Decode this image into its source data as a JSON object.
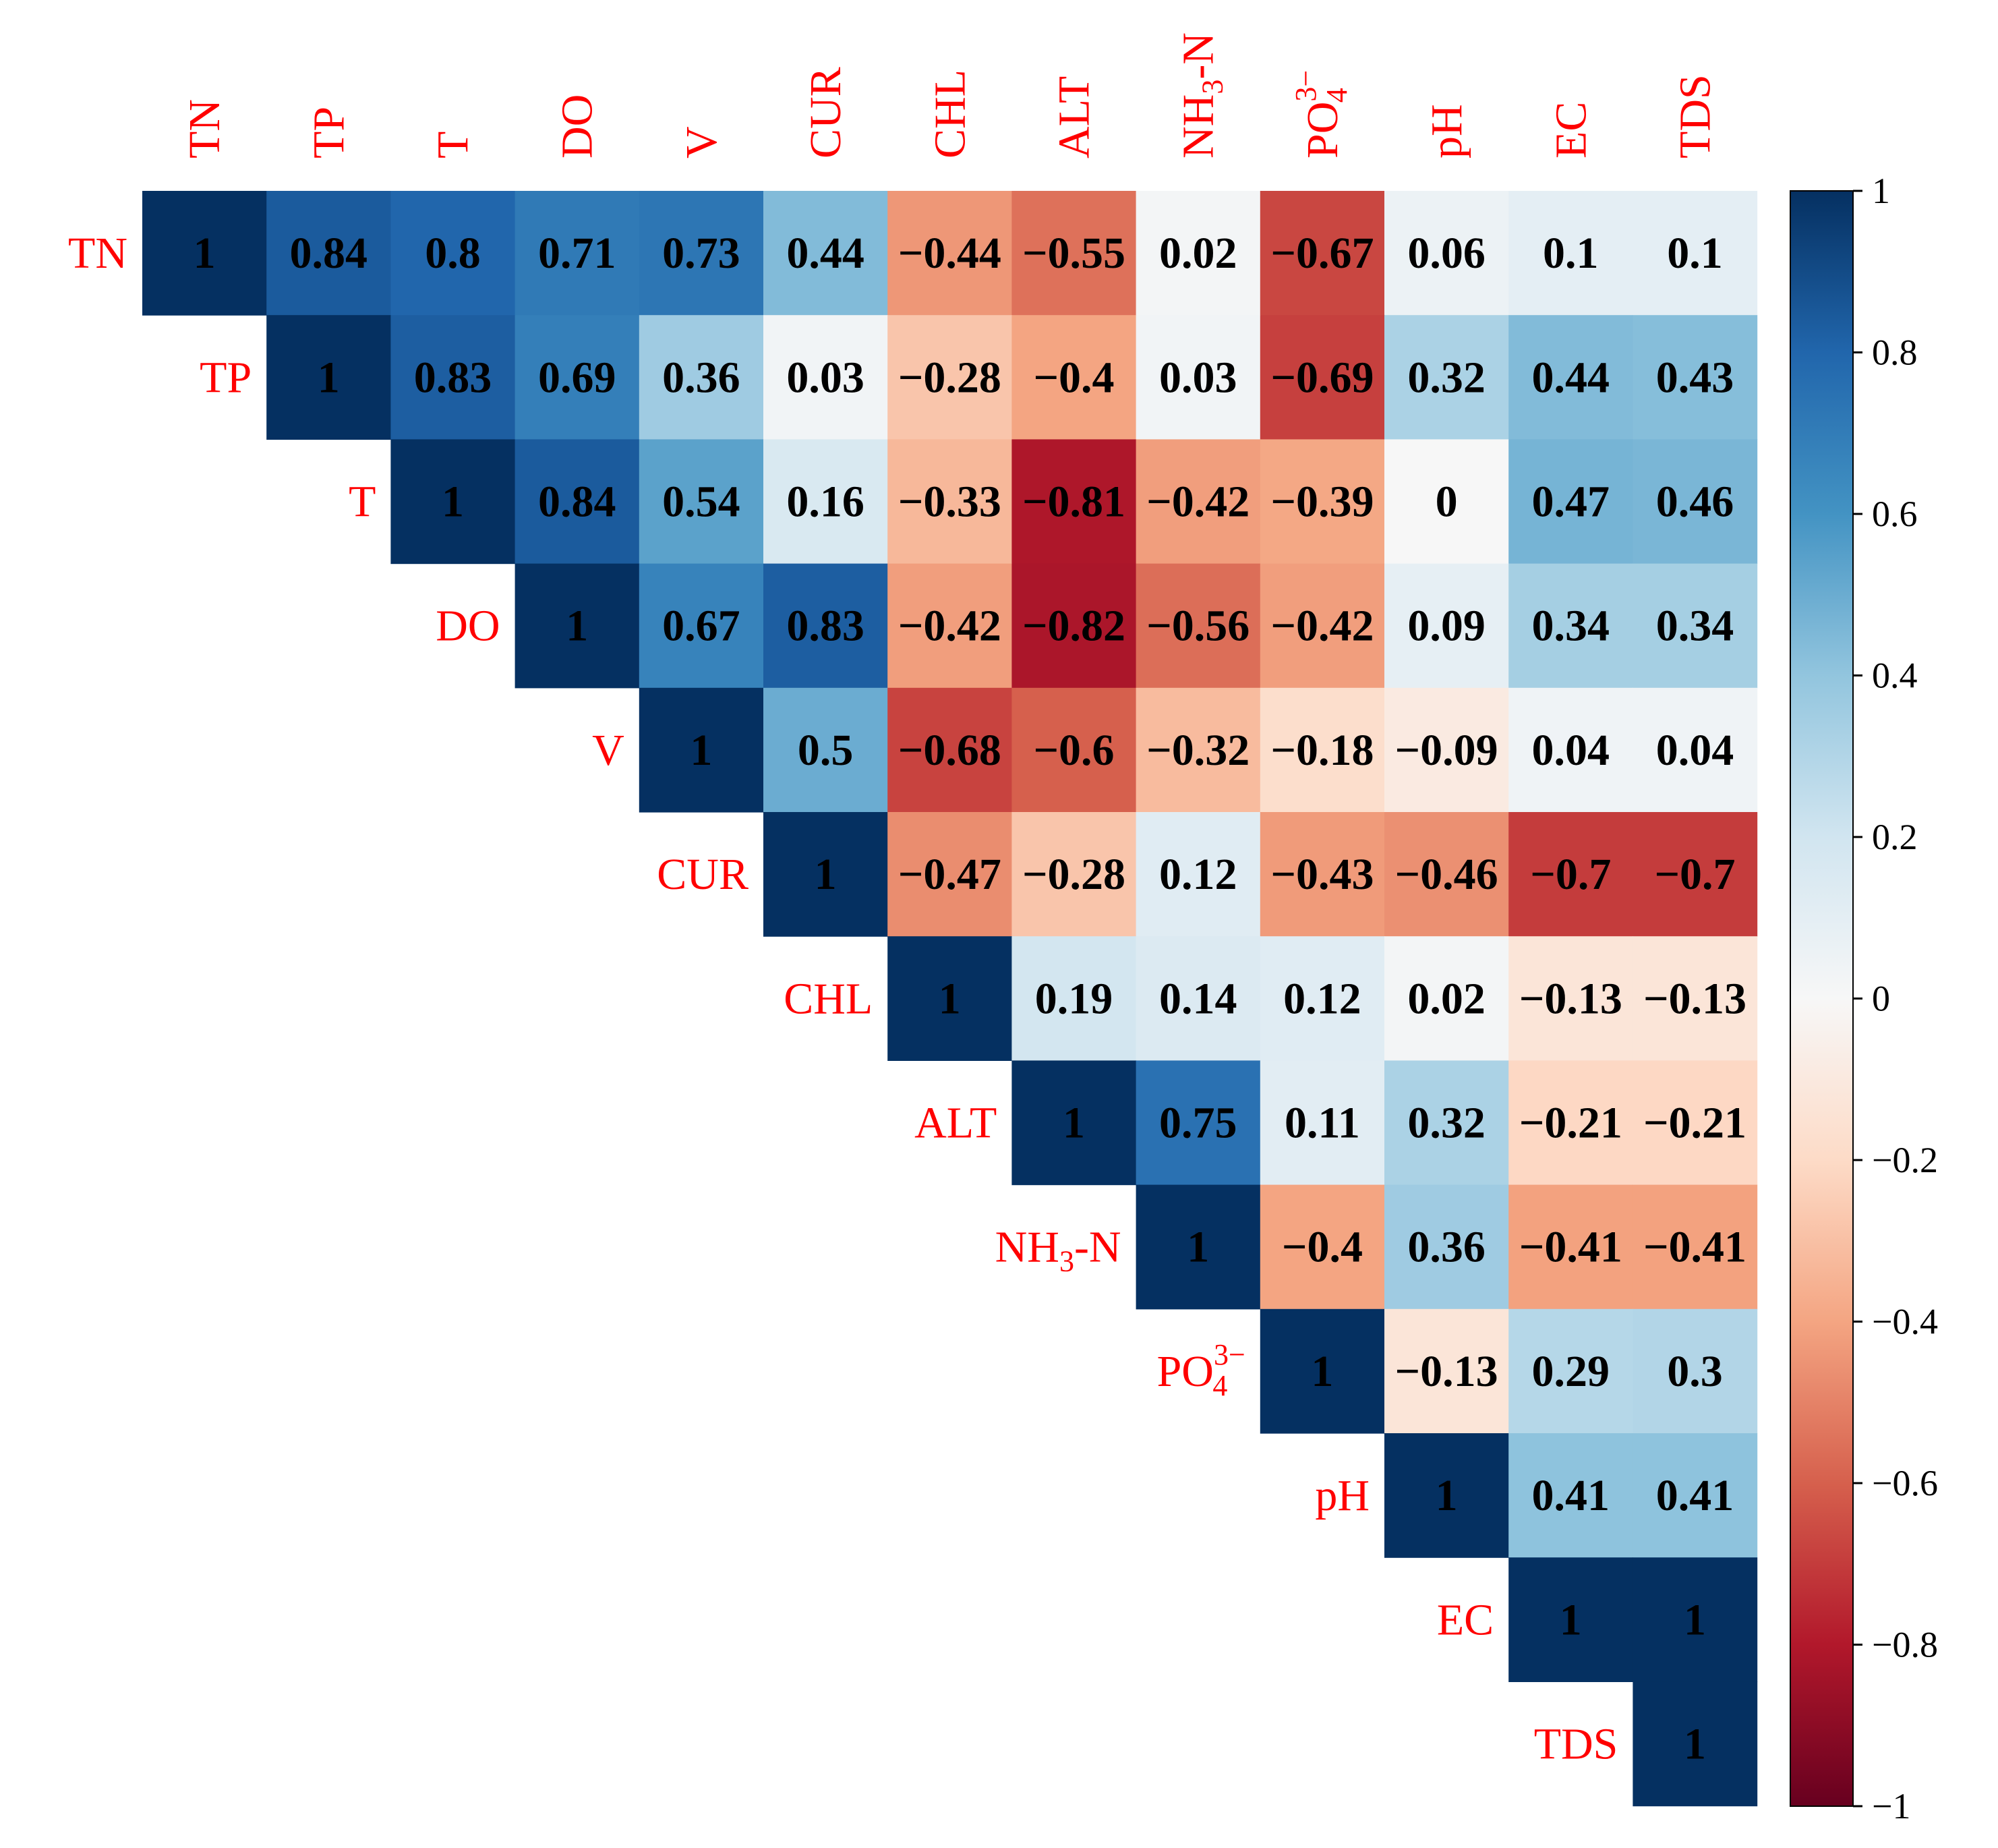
{
  "chart_data": {
    "type": "heatmap",
    "title": "",
    "variables": [
      {
        "main": "TN"
      },
      {
        "main": "TP"
      },
      {
        "main": "T"
      },
      {
        "main": "DO"
      },
      {
        "main": "V"
      },
      {
        "main": "CUR"
      },
      {
        "main": "CHL"
      },
      {
        "main": "ALT"
      },
      {
        "main": "NH",
        "sub": "3",
        "tail": "-N"
      },
      {
        "main": "PO",
        "sup": "3−",
        "sub": "4"
      },
      {
        "main": "pH"
      },
      {
        "main": "EC"
      },
      {
        "main": "TDS"
      }
    ],
    "matrix_upper": [
      [
        "1",
        "0.84",
        "0.8",
        "0.71",
        "0.73",
        "0.44",
        "−0.44",
        "−0.55",
        "0.02",
        "−0.67",
        "0.06",
        "0.1",
        "0.1"
      ],
      [
        "1",
        "0.83",
        "0.69",
        "0.36",
        "0.03",
        "−0.28",
        "−0.4",
        "0.03",
        "−0.69",
        "0.32",
        "0.44",
        "0.43"
      ],
      [
        "1",
        "0.84",
        "0.54",
        "0.16",
        "−0.33",
        "−0.81",
        "−0.42",
        "−0.39",
        "0",
        "0.47",
        "0.46"
      ],
      [
        "1",
        "0.67",
        "0.83",
        "−0.42",
        "−0.82",
        "−0.56",
        "−0.42",
        "0.09",
        "0.34",
        "0.34"
      ],
      [
        "1",
        "0.5",
        "−0.68",
        "−0.6",
        "−0.32",
        "−0.18",
        "−0.09",
        "0.04",
        "0.04"
      ],
      [
        "1",
        "−0.47",
        "−0.28",
        "0.12",
        "−0.43",
        "−0.46",
        "−0.7",
        "−0.7"
      ],
      [
        "1",
        "0.19",
        "0.14",
        "0.12",
        "0.02",
        "−0.13",
        "−0.13"
      ],
      [
        "1",
        "0.75",
        "0.11",
        "0.32",
        "−0.21",
        "−0.21"
      ],
      [
        "1",
        "−0.4",
        "0.36",
        "−0.41",
        "−0.41"
      ],
      [
        "1",
        "−0.13",
        "0.29",
        "0.3"
      ],
      [
        "1",
        "0.41",
        "0.41"
      ],
      [
        "1",
        "1"
      ],
      [
        "1"
      ]
    ],
    "colorbar": {
      "range": [
        -1,
        1
      ],
      "ticks": [
        "1",
        "0.8",
        "0.6",
        "0.4",
        "0.2",
        "0",
        "−0.2",
        "−0.4",
        "−0.6",
        "−0.8",
        "−1"
      ],
      "colormap": "RdBu"
    },
    "label_color": "#ff0000",
    "value_color": "#000000"
  }
}
